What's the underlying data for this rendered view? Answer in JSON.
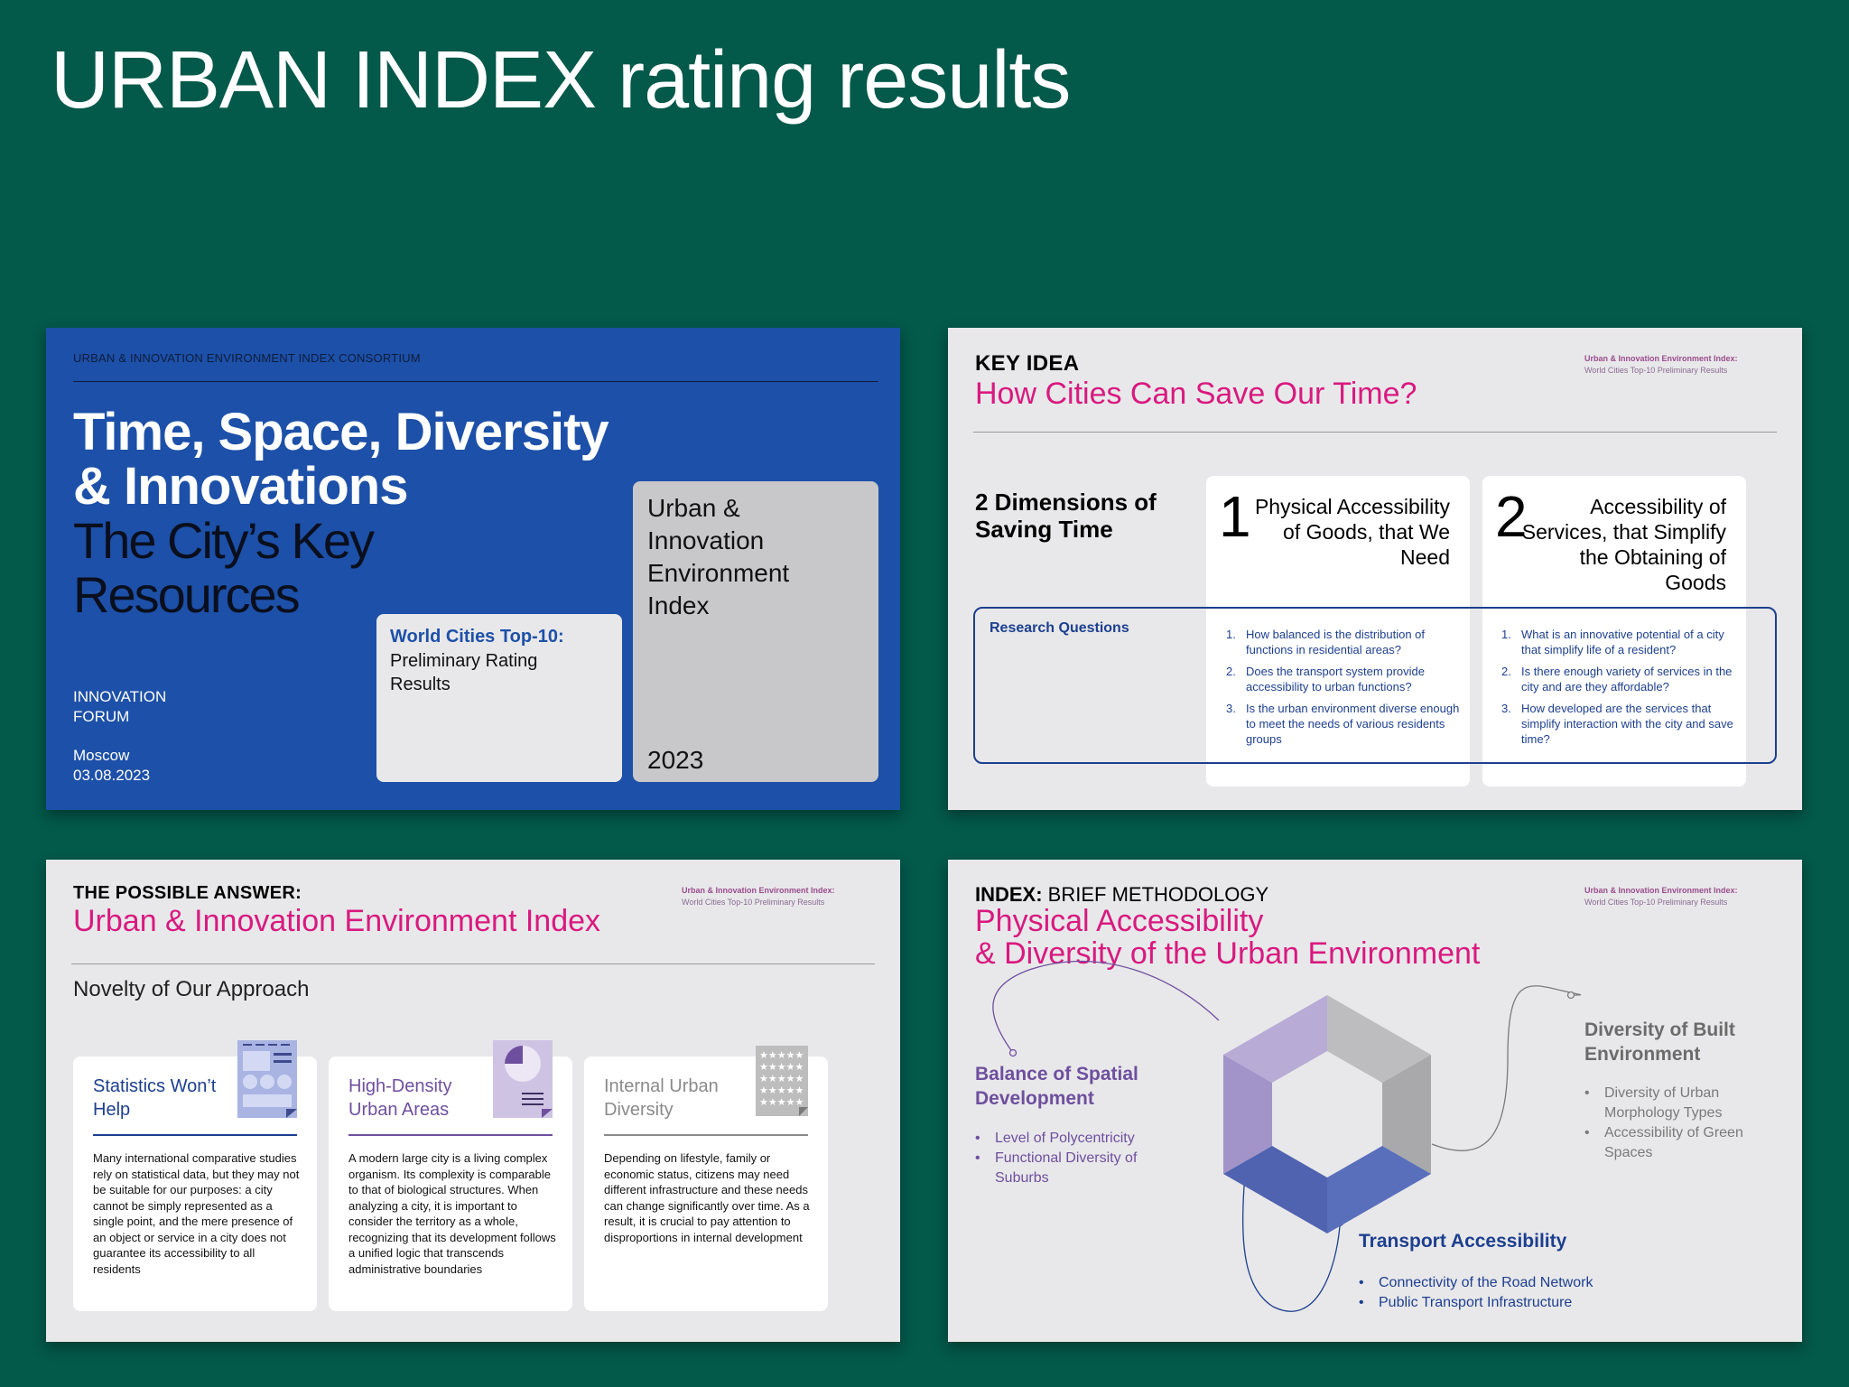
{
  "page_title": "URBAN INDEX rating results",
  "slide1": {
    "consortium": "URBAN & INNOVATION ENVIRONMENT INDEX CONSORTIUM",
    "title_bold": "Time, Space, Diversity & Innovations",
    "title_regular": "The City’s Key Resources",
    "forum": "INNOVATION FORUM",
    "city": "Moscow",
    "date": "03.08.2023",
    "rating_card": {
      "title": "World Cities Top-10:",
      "subtitle": "Preliminary Rating Results"
    },
    "index_card": {
      "title": "Urban & Innovation Environment Index",
      "year": "2023"
    }
  },
  "side_tag": {
    "line1": "Urban & Innovation Environment Index:",
    "line2": "World Cities Top-10 Preliminary Results"
  },
  "slide2": {
    "kicker": "KEY IDEA",
    "title": "How Cities Can Save Our Time?",
    "dimensions_title": "2 Dimensions of Saving Time",
    "dimensions": [
      {
        "number": "1",
        "text": "Physical Accessibility of Goods, that We Need"
      },
      {
        "number": "2",
        "text": "Accessibility of Services, that Simplify the Obtaining of Goods"
      }
    ],
    "research_label": "Research Questions",
    "questions_1": [
      {
        "n": "1.",
        "q": "How balanced is the distribution of functions in residential areas?"
      },
      {
        "n": "2.",
        "q": "Does the transport system provide accessibility to urban functions?"
      },
      {
        "n": "3.",
        "q": "Is the urban environment diverse enough to meet the needs of various residents groups"
      }
    ],
    "questions_2": [
      {
        "n": "1.",
        "q": "What is an innovative potential of a city that simplify life of a resident?"
      },
      {
        "n": "2.",
        "q": "Is there enough variety of services in the city and are they affordable?"
      },
      {
        "n": "3.",
        "q": "How developed are the services that simplify interaction with the city and save time?"
      }
    ]
  },
  "slide3": {
    "kicker": "THE POSSIBLE ANSWER:",
    "title": "Urban & Innovation Environment Index",
    "novelty": "Novelty of Our Approach",
    "cards": [
      {
        "title": "Statistics Won’t Help",
        "body": "Many international comparative studies rely on statistical data, but they may not be suitable for our purposes: a city cannot be simply represented as a single point, and the mere presence of an object or service in a city does not guarantee its accessibility to all residents",
        "color": "#1d3f8f"
      },
      {
        "title": "High-Density Urban Areas",
        "body": "A modern large city is a living complex organism. Its complexity is comparable to that of biological structures. When analyzing a city, it is important to consider the territory as a whole, recognizing that its development follows a unified logic that transcends administrative boundaries",
        "color": "#6e4f9e"
      },
      {
        "title": "Internal Urban Diversity",
        "body": "Depending on lifestyle, family or economic status, citizens may need different infrastructure and these needs can change significantly over time. As a result, it is crucial to pay attention to disproportions in internal development",
        "color": "#8a8a8a"
      }
    ]
  },
  "slide4": {
    "kicker_bold": "INDEX:",
    "kicker_rest": " BRIEF METHODOLOGY",
    "title_line1": "Physical Accessibility",
    "title_line2": "& Diversity of the Urban Environment",
    "spatial": {
      "title": "Balance of Spatial Development",
      "items": [
        "Level of Polycentricity",
        "Functional Diversity of Suburbs"
      ]
    },
    "built": {
      "title": "Diversity of Built Environment",
      "items": [
        "Diversity of Urban Morphology Types",
        "Accessibility of Green Spaces"
      ]
    },
    "transport": {
      "title": "Transport Accessibility",
      "items": [
        "Connectivity of the Road Network",
        "Public Transport Infrastructure"
      ]
    },
    "colors": {
      "purple": "#a99acb",
      "grey": "#b3b3b5",
      "blue": "#5168b8"
    }
  }
}
